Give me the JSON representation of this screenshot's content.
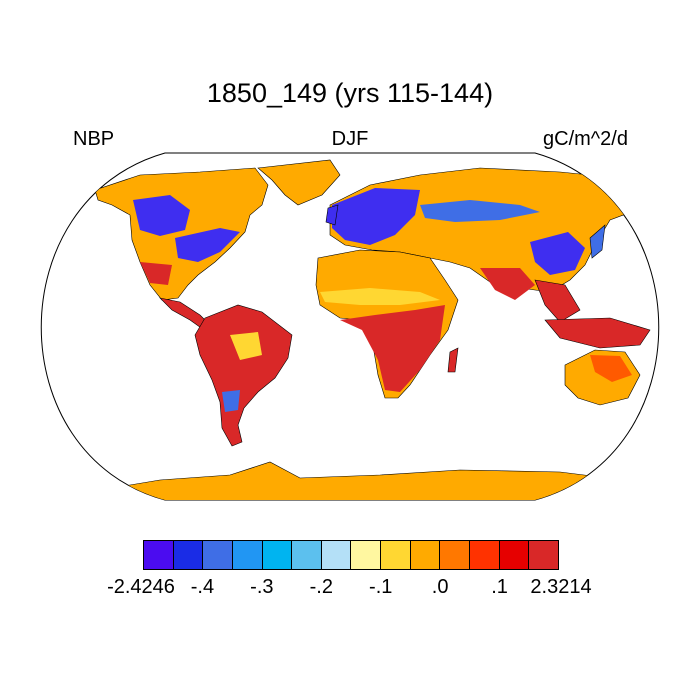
{
  "title": "1850_149 (yrs 115-144)",
  "left_label": "NBP",
  "center_label": "DJF",
  "right_label": "gC/m^2/d",
  "colorbar": {
    "colors": [
      "#4b0cf0",
      "#1a2ce6",
      "#3f6ee6",
      "#2196f3",
      "#00b4f0",
      "#5cc0ee",
      "#b4e0f7",
      "#fff7a0",
      "#ffd732",
      "#ffaa00",
      "#ff7800",
      "#ff3200",
      "#e60000",
      "#d92828"
    ],
    "labels": [
      "-2.4246",
      "-.4",
      "-.3",
      "-.2",
      "-.1",
      ".0",
      ".1",
      "2.3214"
    ]
  },
  "map_colors": {
    "orange": "#ffaa00",
    "yellow": "#ffd732",
    "red": "#d92828",
    "darkred": "#e60000",
    "orangered": "#ff5a00",
    "blue": "#3f2ef0",
    "medblue": "#3f6ee6",
    "lightblue": "#5cc0ee"
  }
}
